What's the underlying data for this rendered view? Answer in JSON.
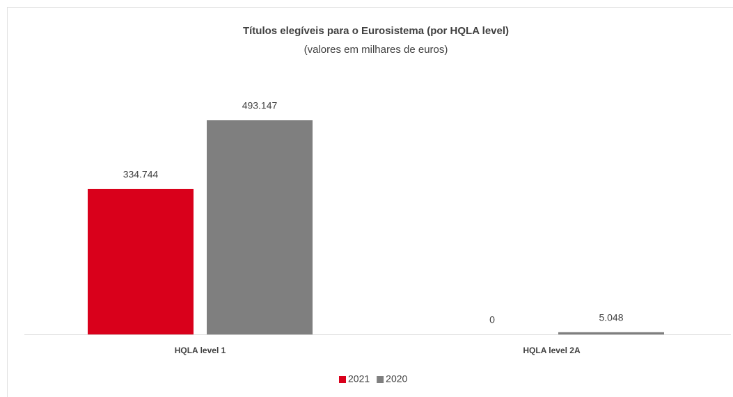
{
  "chart_data": {
    "type": "bar",
    "title": "Títulos elegíveis para o Eurosistema (por HQLA level)",
    "subtitle": "(valores em milhares de euros)",
    "categories": [
      "HQLA level 1",
      "HQLA level 2A"
    ],
    "series": [
      {
        "name": "2021",
        "color": "#d9001b",
        "values": [
          334744,
          0
        ],
        "value_labels": [
          "334.744",
          "0"
        ]
      },
      {
        "name": "2020",
        "color": "#7f7f7f",
        "values": [
          493147,
          5048
        ],
        "value_labels": [
          "493.147",
          "5.048"
        ]
      }
    ],
    "legend": "bottom"
  }
}
